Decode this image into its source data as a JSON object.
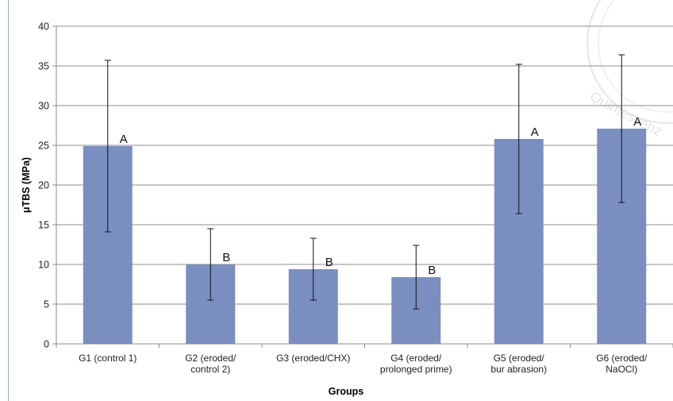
{
  "chart_data": {
    "type": "bar",
    "categories": [
      [
        "G1 (control 1)"
      ],
      [
        "G2 (eroded/",
        "control 2)"
      ],
      [
        "G3 (eroded/CHX)"
      ],
      [
        "G4 (eroded/",
        "prolonged prime)"
      ],
      [
        "G5 (eroded/",
        "bur abrasion)"
      ],
      [
        "G6 (eroded/",
        "NaOCl)"
      ]
    ],
    "values": [
      24.9,
      10.0,
      9.4,
      8.4,
      25.8,
      27.1
    ],
    "errors": [
      10.8,
      4.5,
      3.9,
      4.0,
      9.4,
      9.3
    ],
    "labels": [
      "A",
      "B",
      "B",
      "B",
      "A",
      "A"
    ],
    "xlabel": "Groups",
    "ylabel": "μTBS (MPa)",
    "ylim": [
      0,
      40
    ],
    "yticks": [
      0,
      5,
      10,
      15,
      20,
      25,
      30,
      35,
      40
    ],
    "grid": true,
    "bar_color": "#7a8fc0",
    "watermark": "Quintessenz"
  }
}
